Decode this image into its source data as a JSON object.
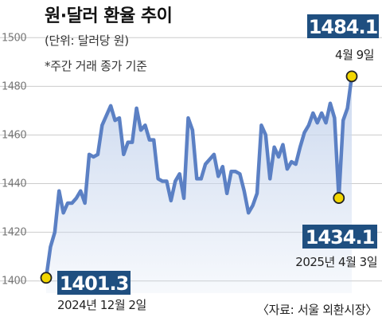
{
  "chart_data": {
    "type": "area",
    "title": "원·달러 환율 추이",
    "subtitle": "(단위: 달러당 원)",
    "note": "*주간 거래 종가 기준",
    "source": "〈자료: 서울 외환시장〉",
    "ylim": [
      1395,
      1505
    ],
    "yticks": [
      1400,
      1420,
      1440,
      1460,
      1480,
      1500
    ],
    "grid": true,
    "colors": {
      "line": "#5b80c4",
      "fill": "#c9d7ee",
      "marker": "#f2d600",
      "label_bg": "#1f4f80",
      "label_text": "#ffffff"
    },
    "series": [
      {
        "values": [
          1401.3,
          1414,
          1420,
          1437,
          1428,
          1432,
          1432,
          1434,
          1437,
          1432,
          1452,
          1451,
          1452,
          1464,
          1468,
          1472,
          1466,
          1467,
          1452,
          1457,
          1457,
          1471,
          1462,
          1464,
          1458,
          1458,
          1442,
          1441,
          1441,
          1433,
          1441,
          1444,
          1434,
          1467,
          1462,
          1442,
          1442,
          1448,
          1450,
          1452,
          1443,
          1447,
          1436,
          1445,
          1445,
          1444,
          1437,
          1428,
          1431,
          1436,
          1464,
          1460,
          1442,
          1455,
          1451,
          1456,
          1446,
          1449,
          1448,
          1455,
          1461,
          1464,
          1469,
          1465,
          1469,
          1465,
          1473,
          1467,
          1434.1,
          1466,
          1471,
          1484.1
        ]
      }
    ],
    "annotations": [
      {
        "label": "1401.3",
        "date": "2024년 12월 2일",
        "index": 0
      },
      {
        "label": "1434.1",
        "date": "2025년 4월 3일",
        "index": 68
      },
      {
        "label": "1484.1",
        "date": "4월 9일",
        "index": 71
      }
    ]
  }
}
